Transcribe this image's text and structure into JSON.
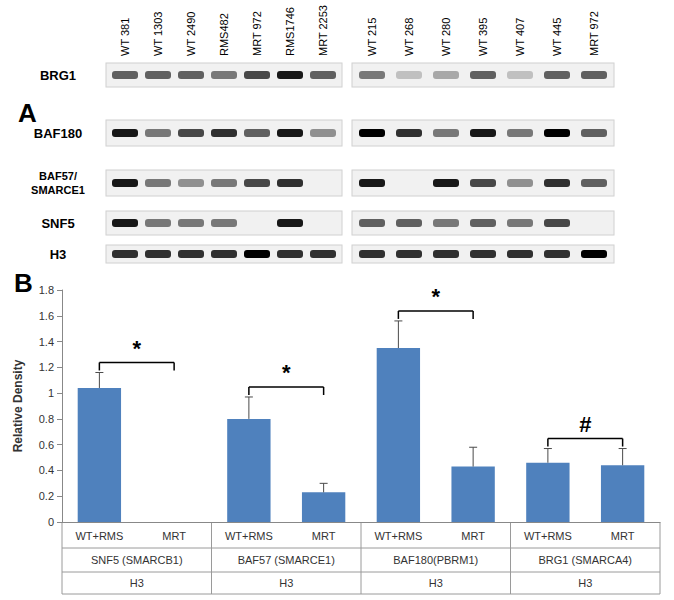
{
  "panel_a": {
    "letter": "A",
    "groups": [
      {
        "lanes": [
          "WT 381",
          "WT 1303",
          "WT 2490",
          "RMS482",
          "MRT 972",
          "RMS1746",
          "MRT 2253"
        ]
      },
      {
        "lanes": [
          "WT 215",
          "WT 268",
          "WT 280",
          "WT 395",
          "WT 407",
          "WT 445",
          "MRT 972"
        ]
      }
    ],
    "rows": [
      "BRG1",
      "BAF180",
      "BAF57/SMARCE1",
      "SNF5",
      "H3"
    ],
    "band_intensity": [
      [
        [
          0.6,
          0.6,
          0.6,
          0.5,
          0.7,
          0.9,
          0.6
        ],
        [
          0.5,
          0.2,
          0.3,
          0.6,
          0.2,
          0.6,
          0.6
        ]
      ],
      [
        [
          0.9,
          0.5,
          0.7,
          0.8,
          0.6,
          0.9,
          0.4
        ],
        [
          1,
          0.8,
          0.5,
          0.9,
          0.5,
          1,
          0.6
        ]
      ],
      [
        [
          0.9,
          0.5,
          0.4,
          0.5,
          0.7,
          0.8,
          0
        ],
        [
          0.9,
          0,
          0.9,
          0.7,
          0.4,
          0.8,
          0.6
        ]
      ],
      [
        [
          0.9,
          0.5,
          0.5,
          0.5,
          0,
          0.9,
          0
        ],
        [
          0.6,
          0.6,
          0.5,
          0.6,
          0.5,
          0.7,
          0
        ]
      ],
      [
        [
          0.8,
          0.8,
          0.8,
          0.8,
          1,
          0.8,
          0.8
        ],
        [
          0.8,
          0.8,
          0.8,
          0.8,
          0.8,
          0.8,
          1
        ]
      ]
    ]
  },
  "panel_b": {
    "letter": "B"
  },
  "chart_data": {
    "type": "bar",
    "categories": [
      "WT+RMS",
      "MRT",
      "WT+RMS",
      "MRT",
      "WT+RMS",
      "MRT",
      "WT+RMS",
      "MRT"
    ],
    "group_labels": [
      "SNF5 (SMARCB1)",
      "BAF57 (SMARCE1)",
      "BAF180(PBRM1)",
      "BRG1 (SMARCA4)"
    ],
    "group_sublabels": [
      "H3",
      "H3",
      "H3",
      "H3"
    ],
    "values": [
      1.04,
      0,
      0.8,
      0.23,
      1.35,
      0.43,
      0.46,
      0.44
    ],
    "errors": [
      0.12,
      0,
      0.17,
      0.07,
      0.21,
      0.15,
      0.11,
      0.13
    ],
    "color": "#4f81bd",
    "y_label": "Relative Density",
    "ylim": [
      0,
      1.8
    ],
    "yticks": [
      0,
      0.2,
      0.4,
      0.6,
      0.8,
      1,
      1.2,
      1.4,
      1.6,
      1.8
    ],
    "grid": false,
    "annotations": [
      {
        "text": "*",
        "group": 0
      },
      {
        "text": "*",
        "group": 1
      },
      {
        "text": "*",
        "group": 2
      },
      {
        "text": "#",
        "group": 3
      }
    ]
  }
}
